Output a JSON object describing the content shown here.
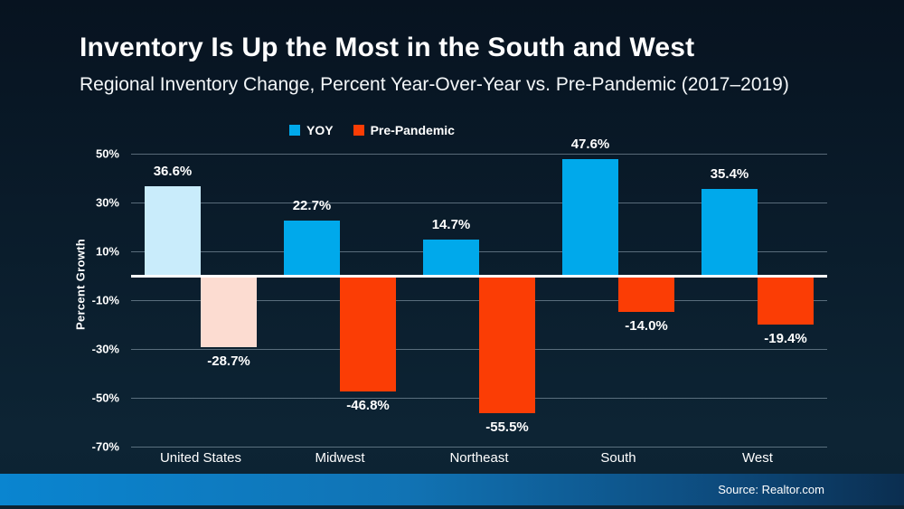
{
  "header": {
    "title": "Inventory Is Up the Most in the South and West",
    "subtitle": "Regional Inventory Change, Percent Year-Over-Year vs. Pre-Pandemic (2017–2019)"
  },
  "footer": {
    "source": "Source: Realtor.com"
  },
  "colors": {
    "yoy": "#00A9EB",
    "pre_pandemic": "#FB3D05",
    "yoy_muted": "#C9ECFB",
    "pre_pandemic_muted": "#FCDCD1",
    "zero_line": "#FFFFFF",
    "background_top": "#071320",
    "background_bottom": "#0D2434",
    "footer_left": "#0A85D0",
    "footer_right": "#0B2E50"
  },
  "chart_data": {
    "type": "bar",
    "title": "Inventory Is Up the Most in the South and West",
    "subtitle": "Regional Inventory Change, Percent Year-Over-Year vs. Pre-Pandemic (2017–2019)",
    "categories": [
      "United States",
      "Midwest",
      "Northeast",
      "South",
      "West"
    ],
    "series": [
      {
        "name": "YOY",
        "color": "#00A9EB",
        "values": [
          36.6,
          22.7,
          14.7,
          47.6,
          35.4
        ],
        "labels": [
          "36.6%",
          "22.7%",
          "14.7%",
          "47.6%",
          "35.4%"
        ]
      },
      {
        "name": "Pre-Pandemic",
        "color": "#FB3D05",
        "values": [
          -28.7,
          -46.8,
          -55.5,
          -14.0,
          -19.4
        ],
        "labels": [
          "-28.7%",
          "-46.8%",
          "-55.5%",
          "-14.0%",
          "-19.4%"
        ]
      }
    ],
    "highlight": {
      "category_index": 0,
      "series_colors": [
        "#C9ECFB",
        "#FCDCD1"
      ]
    },
    "ylabel": "Percent Growth",
    "xlabel": "",
    "yticks": [
      50,
      30,
      10,
      -10,
      -30,
      -50,
      -70
    ],
    "ytick_labels": [
      "50%",
      "30%",
      "10%",
      "-10%",
      "-30%",
      "-50%",
      "-70%"
    ],
    "ylim": [
      -75,
      55
    ],
    "grid": true,
    "legend_position": "top-center",
    "legend": [
      "YOY",
      "Pre-Pandemic"
    ],
    "source": "Source: Realtor.com"
  }
}
